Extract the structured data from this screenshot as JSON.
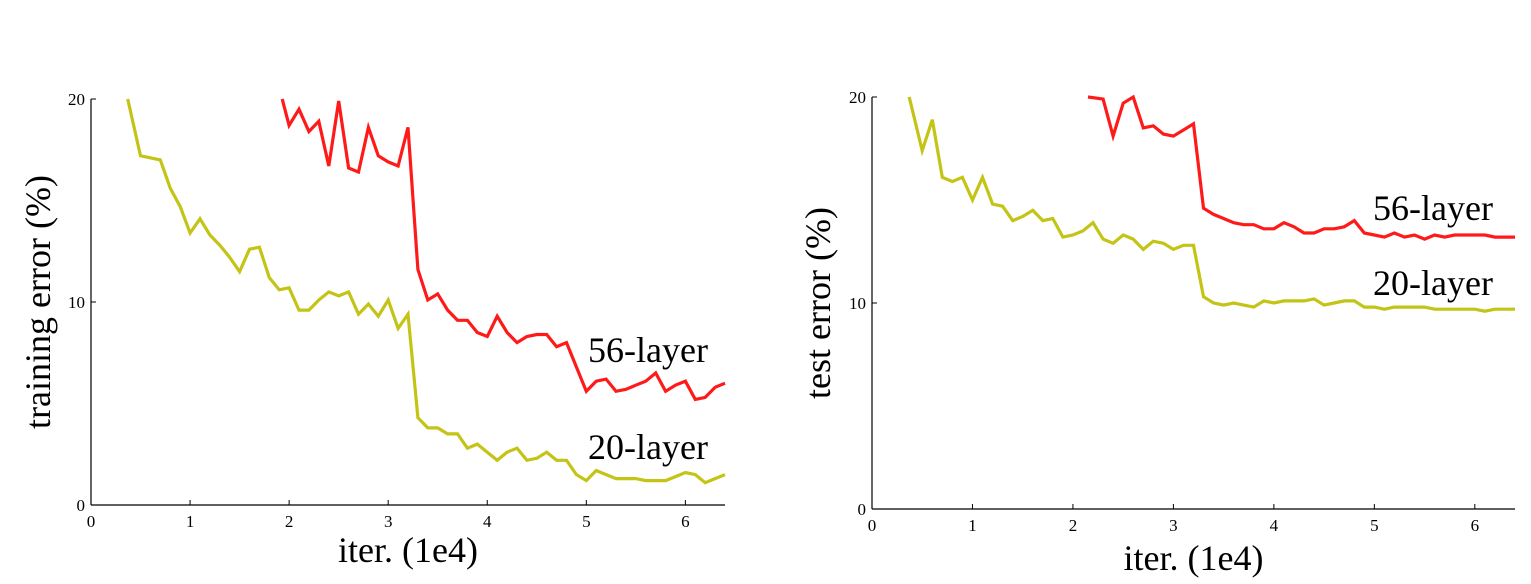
{
  "colors": {
    "56-layer": "#ff1a1a",
    "20-layer": "#c4c417"
  },
  "chart_data": [
    {
      "type": "line",
      "title": "",
      "xlabel": "iter. (1e4)",
      "ylabel": "training error (%)",
      "xlim": [
        0,
        6.4
      ],
      "ylim": [
        0,
        20
      ],
      "xticks": [
        "0",
        "1",
        "2",
        "3",
        "4",
        "5",
        "6"
      ],
      "yticks": [
        "0",
        "10",
        "20"
      ],
      "grid": false,
      "legend": "inline labels at right",
      "series": [
        {
          "name": "56-layer",
          "color": "#ff1a1a",
          "x": [
            1.93,
            2.0,
            2.1,
            2.2,
            2.3,
            2.4,
            2.5,
            2.6,
            2.7,
            2.8,
            2.9,
            3.0,
            3.1,
            3.2,
            3.3,
            3.4,
            3.5,
            3.6,
            3.7,
            3.8,
            3.9,
            4.0,
            4.1,
            4.2,
            4.3,
            4.4,
            4.5,
            4.6,
            4.7,
            4.8,
            4.9,
            5.0,
            5.1,
            5.2,
            5.3,
            5.4,
            5.5,
            5.6,
            5.7,
            5.8,
            5.9,
            6.0,
            6.1,
            6.2,
            6.3,
            6.4
          ],
          "y": [
            20.0,
            18.7,
            19.5,
            18.4,
            18.9,
            16.7,
            19.9,
            16.6,
            16.4,
            18.6,
            17.2,
            16.9,
            16.7,
            18.6,
            11.6,
            10.1,
            10.4,
            9.6,
            9.1,
            9.1,
            8.5,
            8.3,
            9.3,
            8.5,
            8.0,
            8.3,
            8.4,
            8.4,
            7.8,
            8.0,
            6.8,
            5.6,
            6.1,
            6.2,
            5.6,
            5.7,
            5.9,
            6.1,
            6.5,
            5.6,
            5.9,
            6.1,
            5.2,
            5.3,
            5.8,
            6.0
          ]
        },
        {
          "name": "20-layer",
          "color": "#c4c417",
          "x": [
            0.37,
            0.5,
            0.7,
            0.8,
            0.9,
            1.0,
            1.1,
            1.2,
            1.3,
            1.4,
            1.5,
            1.6,
            1.7,
            1.8,
            1.9,
            2.0,
            2.1,
            2.2,
            2.3,
            2.4,
            2.5,
            2.6,
            2.7,
            2.8,
            2.9,
            3.0,
            3.1,
            3.2,
            3.3,
            3.4,
            3.5,
            3.6,
            3.7,
            3.8,
            3.9,
            4.0,
            4.1,
            4.2,
            4.3,
            4.4,
            4.5,
            4.6,
            4.7,
            4.8,
            4.9,
            5.0,
            5.1,
            5.2,
            5.3,
            5.4,
            5.5,
            5.6,
            5.7,
            5.8,
            5.9,
            6.0,
            6.1,
            6.2,
            6.3,
            6.4
          ],
          "y": [
            20.0,
            17.2,
            17.0,
            15.6,
            14.7,
            13.4,
            14.1,
            13.3,
            12.8,
            12.2,
            11.5,
            12.6,
            12.7,
            11.2,
            10.6,
            10.7,
            9.6,
            9.6,
            10.1,
            10.5,
            10.3,
            10.5,
            9.4,
            9.9,
            9.3,
            10.1,
            8.7,
            9.4,
            4.3,
            3.8,
            3.8,
            3.5,
            3.5,
            2.8,
            3.0,
            2.6,
            2.2,
            2.6,
            2.8,
            2.2,
            2.3,
            2.6,
            2.2,
            2.2,
            1.5,
            1.2,
            1.7,
            1.5,
            1.3,
            1.3,
            1.3,
            1.2,
            1.2,
            1.2,
            1.4,
            1.6,
            1.5,
            1.1,
            1.3,
            1.5
          ]
        }
      ]
    },
    {
      "type": "line",
      "title": "",
      "xlabel": "iter. (1e4)",
      "ylabel": "test error (%)",
      "xlim": [
        0,
        6.4
      ],
      "ylim": [
        0,
        20
      ],
      "xticks": [
        "0",
        "1",
        "2",
        "3",
        "4",
        "5",
        "6"
      ],
      "yticks": [
        "0",
        "10",
        "20"
      ],
      "grid": false,
      "legend": "inline labels at right",
      "series": [
        {
          "name": "56-layer",
          "color": "#ff1a1a",
          "x": [
            2.15,
            2.3,
            2.4,
            2.5,
            2.6,
            2.7,
            2.8,
            2.9,
            3.0,
            3.1,
            3.2,
            3.3,
            3.4,
            3.5,
            3.6,
            3.7,
            3.8,
            3.9,
            4.0,
            4.1,
            4.2,
            4.3,
            4.4,
            4.5,
            4.6,
            4.7,
            4.8,
            4.9,
            5.0,
            5.1,
            5.2,
            5.3,
            5.4,
            5.5,
            5.6,
            5.7,
            5.8,
            5.9,
            6.0,
            6.1,
            6.2,
            6.3,
            6.4
          ],
          "y": [
            20.0,
            19.9,
            18.1,
            19.7,
            20.0,
            18.5,
            18.6,
            18.2,
            18.1,
            18.4,
            18.7,
            14.6,
            14.3,
            14.1,
            13.9,
            13.8,
            13.8,
            13.6,
            13.6,
            13.9,
            13.7,
            13.4,
            13.4,
            13.6,
            13.6,
            13.7,
            14.0,
            13.4,
            13.3,
            13.2,
            13.4,
            13.2,
            13.3,
            13.1,
            13.3,
            13.2,
            13.3,
            13.3,
            13.3,
            13.3,
            13.2,
            13.2,
            13.2
          ]
        },
        {
          "name": "20-layer",
          "color": "#c4c417",
          "x": [
            0.37,
            0.5,
            0.6,
            0.7,
            0.8,
            0.9,
            1.0,
            1.1,
            1.2,
            1.3,
            1.4,
            1.5,
            1.6,
            1.7,
            1.8,
            1.9,
            2.0,
            2.1,
            2.2,
            2.3,
            2.4,
            2.5,
            2.6,
            2.7,
            2.8,
            2.9,
            3.0,
            3.1,
            3.2,
            3.3,
            3.4,
            3.5,
            3.6,
            3.7,
            3.8,
            3.9,
            4.0,
            4.1,
            4.2,
            4.3,
            4.4,
            4.5,
            4.6,
            4.7,
            4.8,
            4.9,
            5.0,
            5.1,
            5.2,
            5.3,
            5.4,
            5.5,
            5.6,
            5.7,
            5.8,
            5.9,
            6.0,
            6.1,
            6.2,
            6.3,
            6.4
          ],
          "y": [
            20.0,
            17.4,
            18.9,
            16.1,
            15.9,
            16.1,
            15.0,
            16.1,
            14.8,
            14.7,
            14.0,
            14.2,
            14.5,
            14.0,
            14.1,
            13.2,
            13.3,
            13.5,
            13.9,
            13.1,
            12.9,
            13.3,
            13.1,
            12.6,
            13.0,
            12.9,
            12.6,
            12.8,
            12.8,
            10.3,
            10.0,
            9.9,
            10.0,
            9.9,
            9.8,
            10.1,
            10.0,
            10.1,
            10.1,
            10.1,
            10.2,
            9.9,
            10.0,
            10.1,
            10.1,
            9.8,
            9.8,
            9.7,
            9.8,
            9.8,
            9.8,
            9.8,
            9.7,
            9.7,
            9.7,
            9.7,
            9.7,
            9.6,
            9.7,
            9.7,
            9.7
          ]
        }
      ]
    }
  ]
}
